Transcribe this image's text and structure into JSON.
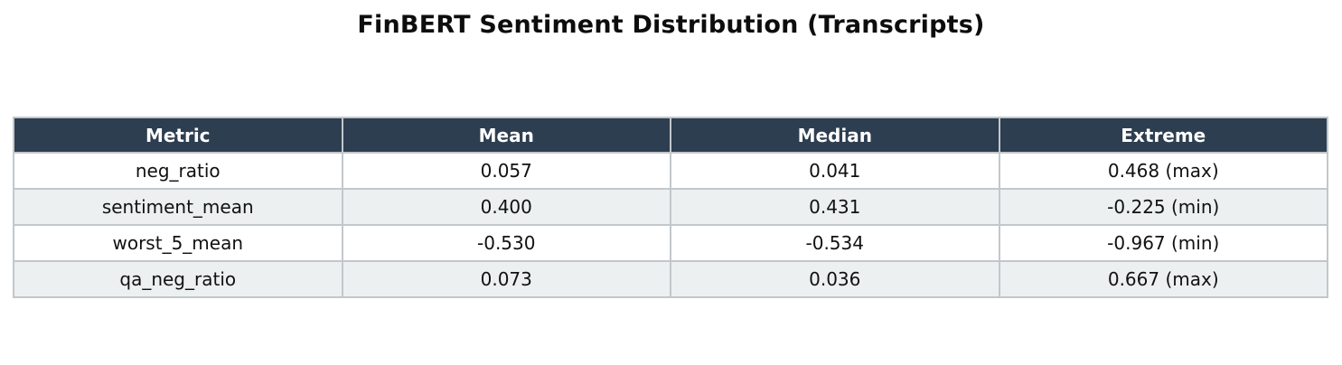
{
  "chart_data": {
    "type": "table",
    "title": "FinBERT Sentiment Distribution (Transcripts)",
    "columns": [
      "Metric",
      "Mean",
      "Median",
      "Extreme"
    ],
    "rows": [
      [
        "neg_ratio",
        "0.057",
        "0.041",
        "0.468 (max)"
      ],
      [
        "sentiment_mean",
        "0.400",
        "0.431",
        "-0.225 (min)"
      ],
      [
        "worst_5_mean",
        "-0.530",
        "-0.534",
        "-0.967 (min)"
      ],
      [
        "qa_neg_ratio",
        "0.073",
        "0.036",
        "0.667 (max)"
      ]
    ],
    "layout": {
      "row_striping": "alternating",
      "cell_alignment": "center"
    }
  },
  "colors": {
    "header_bg": "#2d3e50",
    "header_text": "#ffffff",
    "row_bg": "#ffffff",
    "row_alt_bg": "#ecf0f1",
    "border": "#c2c7cb",
    "text": "#111111"
  }
}
